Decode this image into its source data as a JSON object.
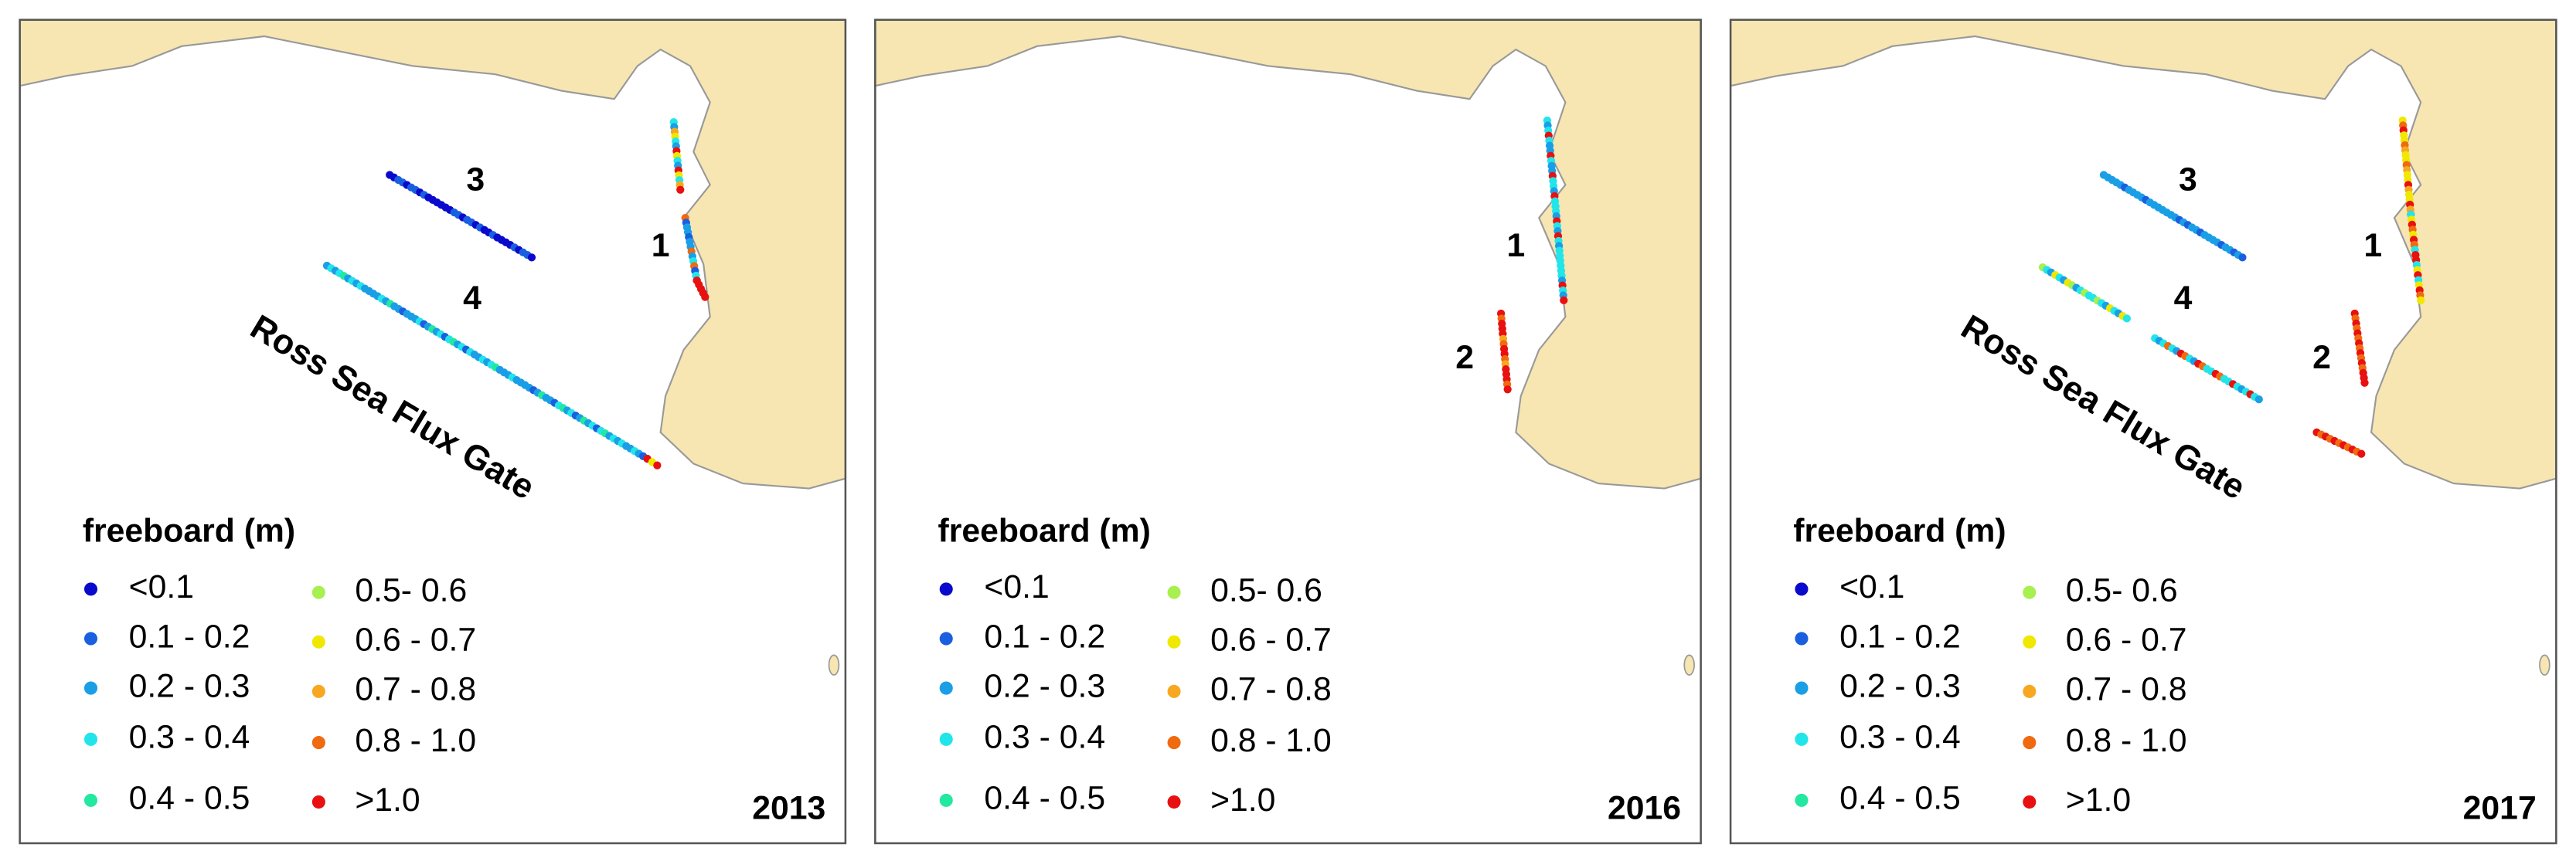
{
  "panels": [
    {
      "year": "2013",
      "track_labels": [
        "1",
        "3",
        "4"
      ],
      "gate_label": "Ross Sea Flux Gate"
    },
    {
      "year": "2016",
      "track_labels": [
        "1",
        "2"
      ]
    },
    {
      "year": "2017",
      "track_labels": [
        "1",
        "2",
        "3",
        "4"
      ],
      "gate_label": "Ross Sea Flux Gate"
    }
  ],
  "legend": {
    "title": "freeboard (m)",
    "items": [
      {
        "label": "<0.1",
        "color": "#0a0acc"
      },
      {
        "label": "0.1 - 0.2",
        "color": "#1a5fe0"
      },
      {
        "label": "0.2 - 0.3",
        "color": "#1a9fe6"
      },
      {
        "label": "0.3 - 0.4",
        "color": "#22e5ea"
      },
      {
        "label": "0.4 - 0.5",
        "color": "#22e8a0"
      },
      {
        "label": "0.5- 0.6",
        "color": "#a8ef50"
      },
      {
        "label": "0.6 - 0.7",
        "color": "#f0e800"
      },
      {
        "label": "0.7 - 0.8",
        "color": "#f8a820"
      },
      {
        "label": "0.8 - 1.0",
        "color": "#f06a10"
      },
      {
        "label": ">1.0",
        "color": "#e81010"
      }
    ]
  }
}
